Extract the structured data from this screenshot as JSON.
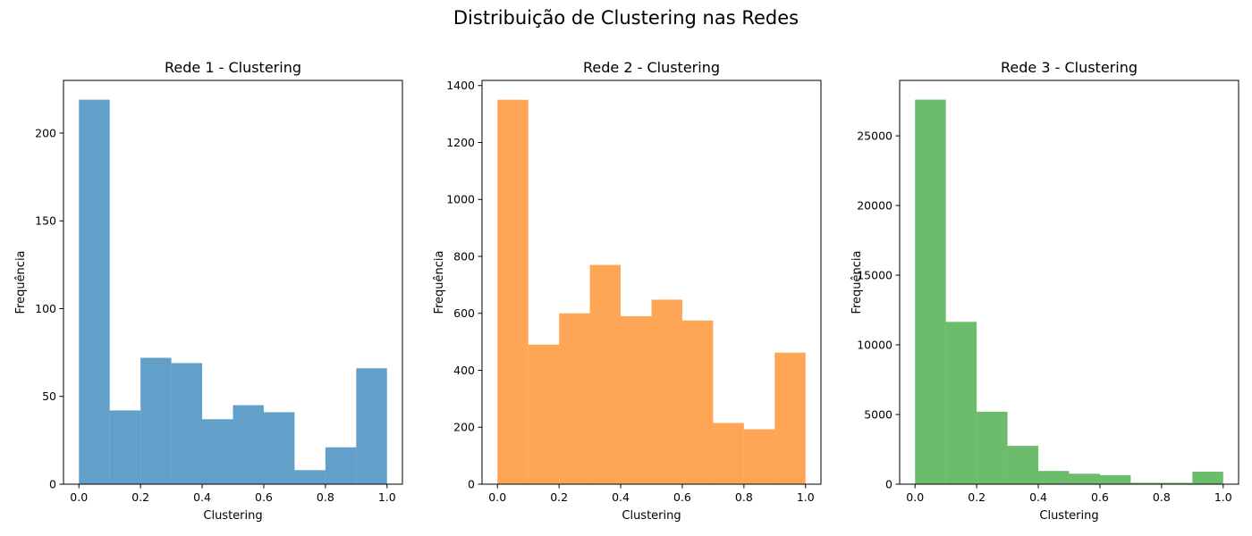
{
  "figure": {
    "title": "Distribuição de Clustering nas Redes"
  },
  "chart_data": [
    {
      "type": "bar",
      "title": "Rede 1 - Clustering",
      "xlabel": "Clustering",
      "ylabel": "Frequência",
      "color": "#1f77b4",
      "opacity": 0.7,
      "bin_edges": [
        0.0,
        0.1,
        0.2,
        0.3,
        0.4,
        0.5,
        0.6,
        0.7,
        0.8,
        0.9,
        1.0
      ],
      "values": [
        219,
        42,
        72,
        69,
        37,
        45,
        41,
        8,
        21,
        66
      ],
      "xlim": [
        -0.05,
        1.05
      ],
      "ylim": [
        0,
        230
      ],
      "xticks": [
        0.0,
        0.2,
        0.4,
        0.6,
        0.8,
        1.0
      ],
      "xtick_labels": [
        "0.0",
        "0.2",
        "0.4",
        "0.6",
        "0.8",
        "1.0"
      ],
      "yticks": [
        0,
        50,
        100,
        150,
        200
      ],
      "ytick_labels": [
        "0",
        "50",
        "100",
        "150",
        "200"
      ]
    },
    {
      "type": "bar",
      "title": "Rede 2 - Clustering",
      "xlabel": "Clustering",
      "ylabel": "Frequência",
      "color": "#ff7f0e",
      "opacity": 0.7,
      "bin_edges": [
        0.0,
        0.1,
        0.2,
        0.3,
        0.4,
        0.5,
        0.6,
        0.7,
        0.8,
        0.9,
        1.0
      ],
      "values": [
        1350,
        490,
        600,
        770,
        590,
        648,
        575,
        215,
        193,
        462
      ],
      "xlim": [
        -0.05,
        1.05
      ],
      "ylim": [
        0,
        1418
      ],
      "xticks": [
        0.0,
        0.2,
        0.4,
        0.6,
        0.8,
        1.0
      ],
      "xtick_labels": [
        "0.0",
        "0.2",
        "0.4",
        "0.6",
        "0.8",
        "1.0"
      ],
      "yticks": [
        0,
        200,
        400,
        600,
        800,
        1000,
        1200,
        1400
      ],
      "ytick_labels": [
        "0",
        "200",
        "400",
        "600",
        "800",
        "1000",
        "1200",
        "1400"
      ]
    },
    {
      "type": "bar",
      "title": "Rede 3 - Clustering",
      "xlabel": "Clustering",
      "ylabel": "Frequência",
      "color": "#2ca02c",
      "opacity": 0.7,
      "bin_edges": [
        0.0,
        0.1,
        0.2,
        0.3,
        0.4,
        0.5,
        0.6,
        0.7,
        0.8,
        0.9,
        1.0
      ],
      "values": [
        27600,
        11650,
        5200,
        2750,
        950,
        750,
        650,
        100,
        100,
        900
      ],
      "xlim": [
        -0.05,
        1.05
      ],
      "ylim": [
        0,
        28980
      ],
      "xticks": [
        0.0,
        0.2,
        0.4,
        0.6,
        0.8,
        1.0
      ],
      "xtick_labels": [
        "0.0",
        "0.2",
        "0.4",
        "0.6",
        "0.8",
        "1.0"
      ],
      "yticks": [
        0,
        5000,
        10000,
        15000,
        20000,
        25000
      ],
      "ytick_labels": [
        "0",
        "5000",
        "10000",
        "15000",
        "20000",
        "25000"
      ]
    }
  ]
}
